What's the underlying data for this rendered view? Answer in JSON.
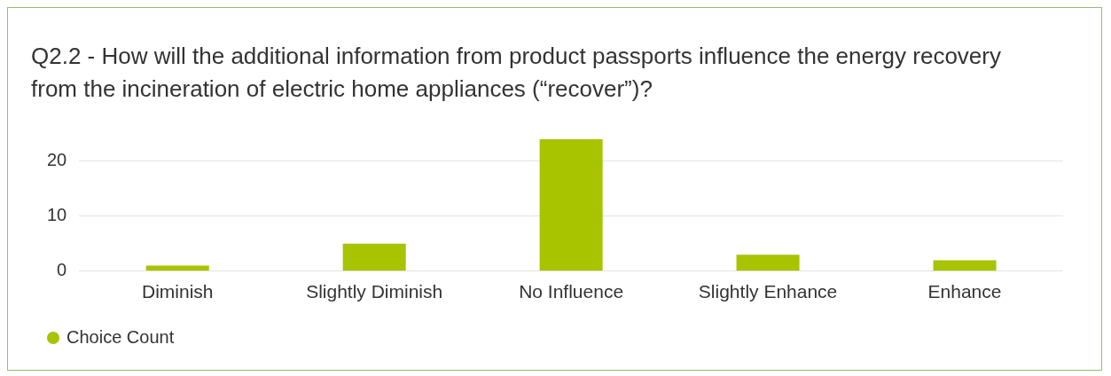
{
  "chart_data": {
    "type": "bar",
    "title": "Q2.2 - How will the additional information from product passports influence the energy recovery from the incineration of electric home appliances (“recover”)?",
    "categories": [
      "Diminish",
      "Slightly Diminish",
      "No Influence",
      "Slightly Enhance",
      "Enhance"
    ],
    "series": [
      {
        "name": "Choice Count",
        "color": "#a8c300",
        "values": [
          1,
          5,
          24,
          3,
          2
        ]
      }
    ],
    "ylim": [
      0,
      24
    ],
    "yticks": [
      0,
      10,
      20
    ],
    "grid": "y",
    "legend": "bottom left"
  }
}
